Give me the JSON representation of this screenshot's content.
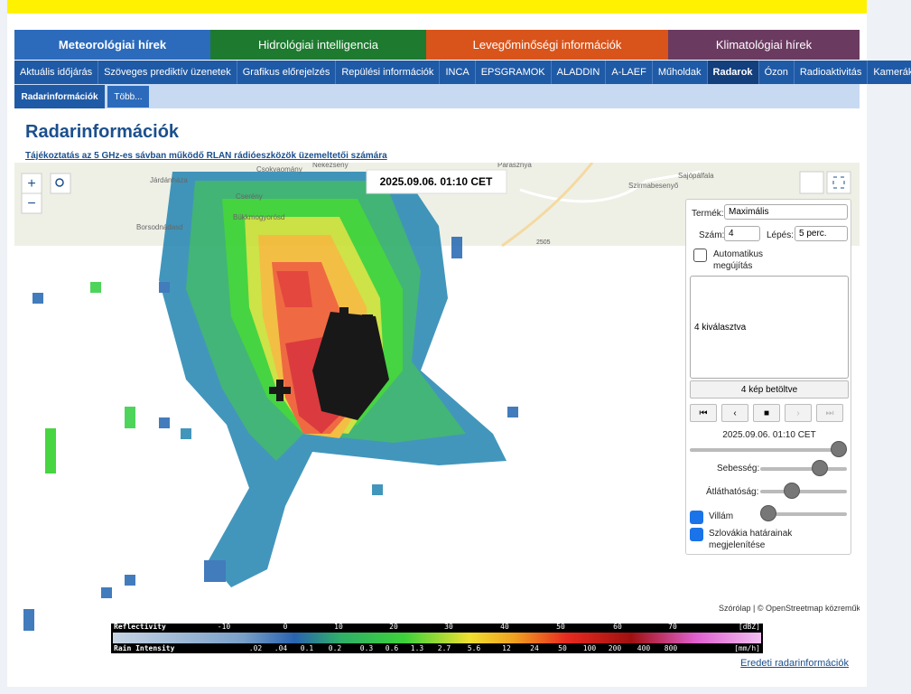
{
  "tabs": [
    "Meteorológiai hírek",
    "Hidrológiai intelligencia",
    "Levegőminőségi információk",
    "Klimatológiai hírek"
  ],
  "subnav": [
    "Aktuális időjárás",
    "Szöveges prediktív üzenetek",
    "Grafikus előrejelzés",
    "Repülési információk",
    "INCA",
    "EPSGRAMOK",
    "ALADDIN",
    "A-LAEF",
    "Műholdak",
    "Radarok",
    "Ózon",
    "Radioaktivitás",
    "Kamerák"
  ],
  "subnav2": [
    "Radarinformációk",
    "Több..."
  ],
  "title": "Radarinformációk",
  "notice": "Tájékoztatás az 5 GHz-es sávban működő RLAN rádióeszközök üzemeltetői számára",
  "map": {
    "timestamp": "2025.09.06. 01:10 CET",
    "places": [
      "Járdánháza",
      "Borsodnádasd",
      "Cserény",
      "Bükkmogyorósd",
      "Csokvaomány",
      "Nekézseny",
      "Parasznya",
      "Sajópálfala",
      "Szirmabesenyő"
    ],
    "road": "2505"
  },
  "panel": {
    "product_label": "Termék:",
    "product": "Maximális",
    "count_label": "Szám:",
    "count": "4",
    "step_label": "Lépés:",
    "step": "5 perc.",
    "auto": "Automatikus megújítás",
    "selected": "4 kiválasztva",
    "loaded": "4 kép betöltve",
    "time": "2025.09.06. 01:10 CET",
    "speed": "Sebesség:",
    "opacity": "Átláthatóság:",
    "lightning": "Villám",
    "border": "Szlovákia határainak megjelenítése"
  },
  "legend": {
    "reflectivity_title": "Reflectivity",
    "reflectivity_ticks": [
      "-10",
      "0",
      "10",
      "20",
      "30",
      "40",
      "50",
      "60",
      "70"
    ],
    "reflectivity_unit": "[dBZ]",
    "rain_title": "Rain Intensity",
    "rain_ticks": [
      ".02",
      ".04",
      "0.1",
      "0.2",
      "0.3",
      "0.6",
      "1.3",
      "2.7",
      "5.6",
      "12",
      "24",
      "50",
      "100",
      "200",
      "400",
      "800"
    ],
    "rain_unit": "[mm/h]"
  },
  "attribution": "Szórólap | © OpenStreetmap közreműködők",
  "footer_link": "Eredeti radarinformációk"
}
